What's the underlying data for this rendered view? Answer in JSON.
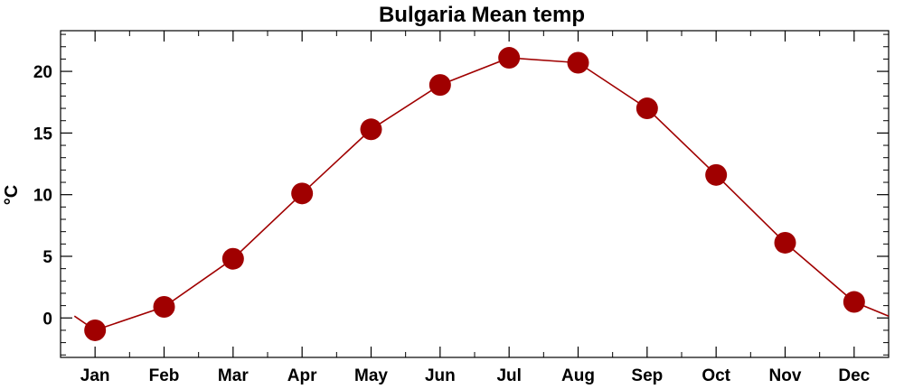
{
  "chart_data": {
    "type": "line",
    "title": "Bulgaria Mean temp",
    "xlabel": "",
    "ylabel": "°C",
    "categories": [
      "Jan",
      "Feb",
      "Mar",
      "Apr",
      "May",
      "Jun",
      "Jul",
      "Aug",
      "Sep",
      "Oct",
      "Nov",
      "Dec"
    ],
    "series": [
      {
        "values": [
          -1.0,
          0.9,
          4.8,
          10.1,
          15.3,
          18.9,
          21.1,
          20.7,
          17.0,
          11.6,
          6.1,
          1.3
        ]
      }
    ],
    "ylim": [
      -3.2,
      23.3
    ],
    "yticks": [
      0,
      5,
      10,
      15,
      20
    ],
    "grid": false,
    "colors": {
      "line": "#a00000",
      "marker": "#a00000",
      "axes": "#000000"
    }
  }
}
